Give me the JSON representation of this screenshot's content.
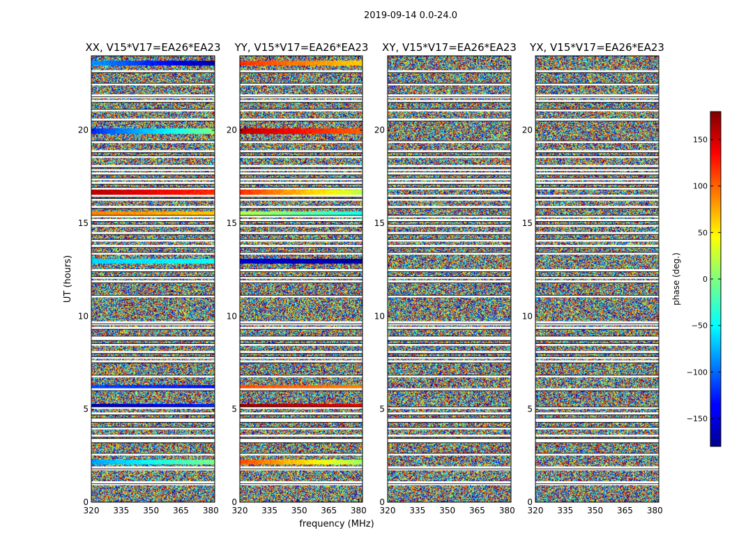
{
  "figure": {
    "suptitle": "2019-09-14 0.0-24.0"
  },
  "chart_data": [
    {
      "type": "heatmap",
      "title": "XX, V15*V17=EA26*EA23",
      "xlabel": "",
      "ylabel": "UT (hours)",
      "xlim": [
        320,
        382
      ],
      "ylim": [
        0,
        24
      ],
      "xticks": [
        320,
        335,
        350,
        365,
        380
      ],
      "yticks": [
        0,
        5,
        10,
        15,
        20
      ],
      "value_label": "phase (deg.)",
      "bright_bands": [
        {
          "t": 2.15,
          "start": -80,
          "end": 0
        },
        {
          "t": 5.15,
          "start": -160,
          "end": -120
        },
        {
          "t": 6.15,
          "start": -110,
          "end": -130
        },
        {
          "t": 12.95,
          "start": -60,
          "end": -40
        },
        {
          "t": 15.5,
          "start": 90,
          "end": 65
        },
        {
          "t": 16.65,
          "start": 160,
          "end": 120
        },
        {
          "t": 19.95,
          "start": -120,
          "end": 0
        },
        {
          "t": 23.6,
          "start": -80,
          "end": -170
        }
      ]
    },
    {
      "type": "heatmap",
      "title": "YY, V15*V17=EA26*EA23",
      "xlabel": "frequency (MHz)",
      "ylabel": "",
      "xlim": [
        320,
        382
      ],
      "ylim": [
        0,
        24
      ],
      "xticks": [
        320,
        335,
        350,
        365,
        380
      ],
      "yticks": [
        0,
        5,
        10,
        15,
        20
      ],
      "value_label": "phase (deg.)",
      "bright_bands": [
        {
          "t": 2.15,
          "start": 110,
          "end": 10
        },
        {
          "t": 5.15,
          "start": 170,
          "end": 140
        },
        {
          "t": 6.15,
          "start": 110,
          "end": 90
        },
        {
          "t": 12.95,
          "start": -150,
          "end": -170
        },
        {
          "t": 15.5,
          "start": 20,
          "end": -40
        },
        {
          "t": 16.65,
          "start": 120,
          "end": 20
        },
        {
          "t": 19.95,
          "start": 160,
          "end": 100
        },
        {
          "t": 23.6,
          "start": 120,
          "end": 60
        }
      ]
    },
    {
      "type": "heatmap",
      "title": "XY, V15*V17=EA26*EA23",
      "xlabel": "",
      "ylabel": "",
      "xlim": [
        320,
        382
      ],
      "ylim": [
        0,
        24
      ],
      "xticks": [
        320,
        335,
        350,
        365,
        380
      ],
      "yticks": [
        0,
        5,
        10,
        15,
        20
      ],
      "value_label": "phase (deg.)",
      "bright_bands": []
    },
    {
      "type": "heatmap",
      "title": "YX, V15*V17=EA26*EA23",
      "xlabel": "",
      "ylabel": "",
      "xlim": [
        320,
        382
      ],
      "ylim": [
        0,
        24
      ],
      "xticks": [
        320,
        335,
        350,
        365,
        380
      ],
      "yticks": [
        0,
        5,
        10,
        15,
        20
      ],
      "value_label": "phase (deg.)",
      "bright_bands": []
    }
  ],
  "colorbar": {
    "label": "phase (deg.)",
    "range": [
      -180,
      180
    ],
    "ticks": [
      -150,
      -100,
      -50,
      0,
      50,
      100,
      150
    ],
    "colormap": "jet"
  },
  "flagged_rows_ut": [
    0.95,
    1.05,
    1.75,
    1.85,
    2.55,
    3.25,
    3.35,
    3.55,
    3.95,
    4.35,
    4.45,
    4.75,
    5.05,
    6.05,
    6.75,
    7.55,
    7.75,
    8.05,
    8.45,
    8.75,
    8.85,
    9.35,
    9.55,
    9.65,
    11.05,
    11.85,
    12.05,
    12.45,
    13.35,
    13.75,
    14.05,
    14.45,
    14.85,
    15.15,
    15.35,
    15.85,
    16.25,
    16.45,
    16.85,
    17.15,
    17.35,
    17.65,
    17.85,
    18.05,
    18.55,
    18.85,
    19.35,
    20.55,
    21.05,
    21.55,
    21.75,
    21.85,
    22.45,
    23.15
  ]
}
